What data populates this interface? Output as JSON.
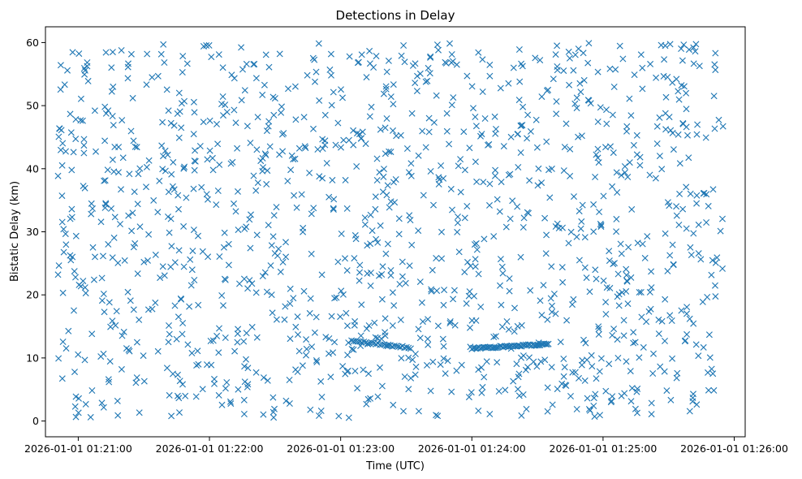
{
  "chart_data": {
    "type": "scatter",
    "title": "Detections in Delay",
    "xlabel": "Time (UTC)",
    "ylabel": "Bistatic Delay (km)",
    "marker": "x",
    "color": "#1f77b4",
    "grid": false,
    "x_range": [
      "2026-01-01 01:20:45",
      "2026-01-01 01:26:05"
    ],
    "ylim": [
      -2.5,
      62.5
    ],
    "x_ticks": [
      "2026-01-01 01:21:00",
      "2026-01-01 01:22:00",
      "2026-01-01 01:23:00",
      "2026-01-01 01:24:00",
      "2026-01-01 01:25:00",
      "2026-01-01 01:26:00"
    ],
    "y_ticks": [
      0,
      10,
      20,
      30,
      40,
      50,
      60
    ],
    "clutter": {
      "time_start": "2026-01-01 01:20:50",
      "time_end": "2026-01-01 01:25:55",
      "delay_min": 0.5,
      "delay_max": 60,
      "count": 1300
    },
    "tracks": [
      {
        "time_start": "2026-01-01 01:23:05",
        "time_end": "2026-01-01 01:23:32",
        "delay_start": 12.7,
        "delay_end": 11.6,
        "count": 30
      },
      {
        "time_start": "2026-01-01 01:24:00",
        "time_end": "2026-01-01 01:24:35",
        "delay_start": 11.5,
        "delay_end": 12.2,
        "count": 55
      }
    ]
  }
}
